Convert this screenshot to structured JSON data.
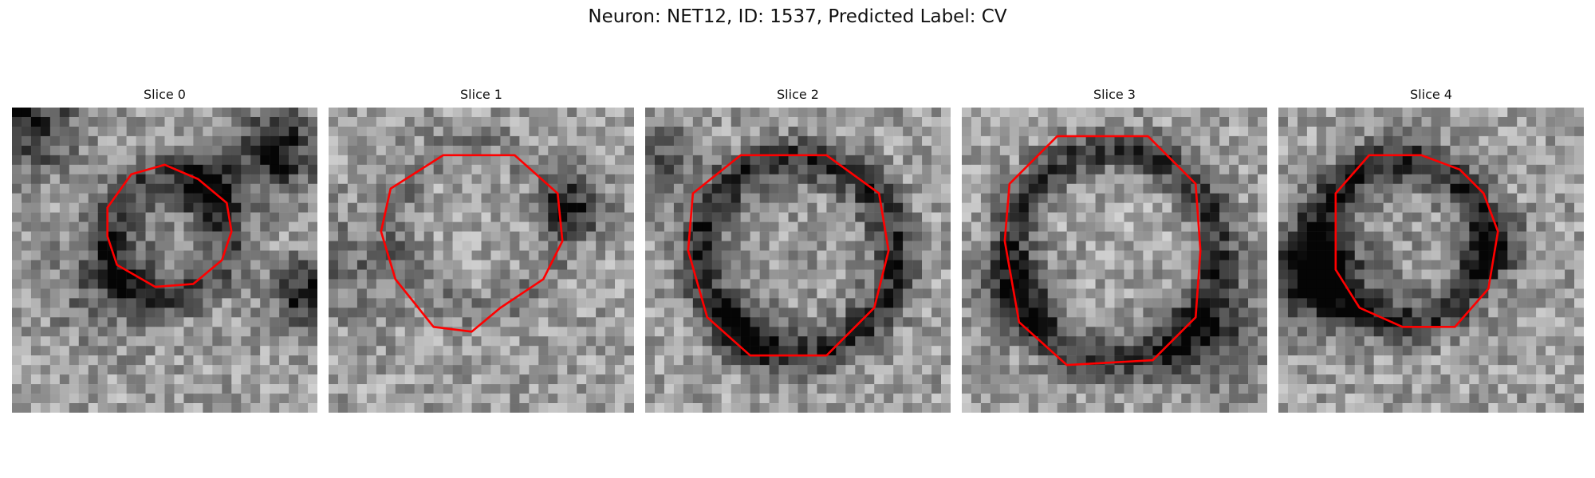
{
  "figure": {
    "title": "Neuron: NET12, ID: 1537, Predicted Label: CV"
  },
  "slices": [
    {
      "title": "Slice 0"
    },
    {
      "title": "Slice 1"
    },
    {
      "title": "Slice 2"
    },
    {
      "title": "Slice 3"
    },
    {
      "title": "Slice 4"
    }
  ],
  "colors": {
    "contour": "#ff0000",
    "background": "#ffffff"
  }
}
